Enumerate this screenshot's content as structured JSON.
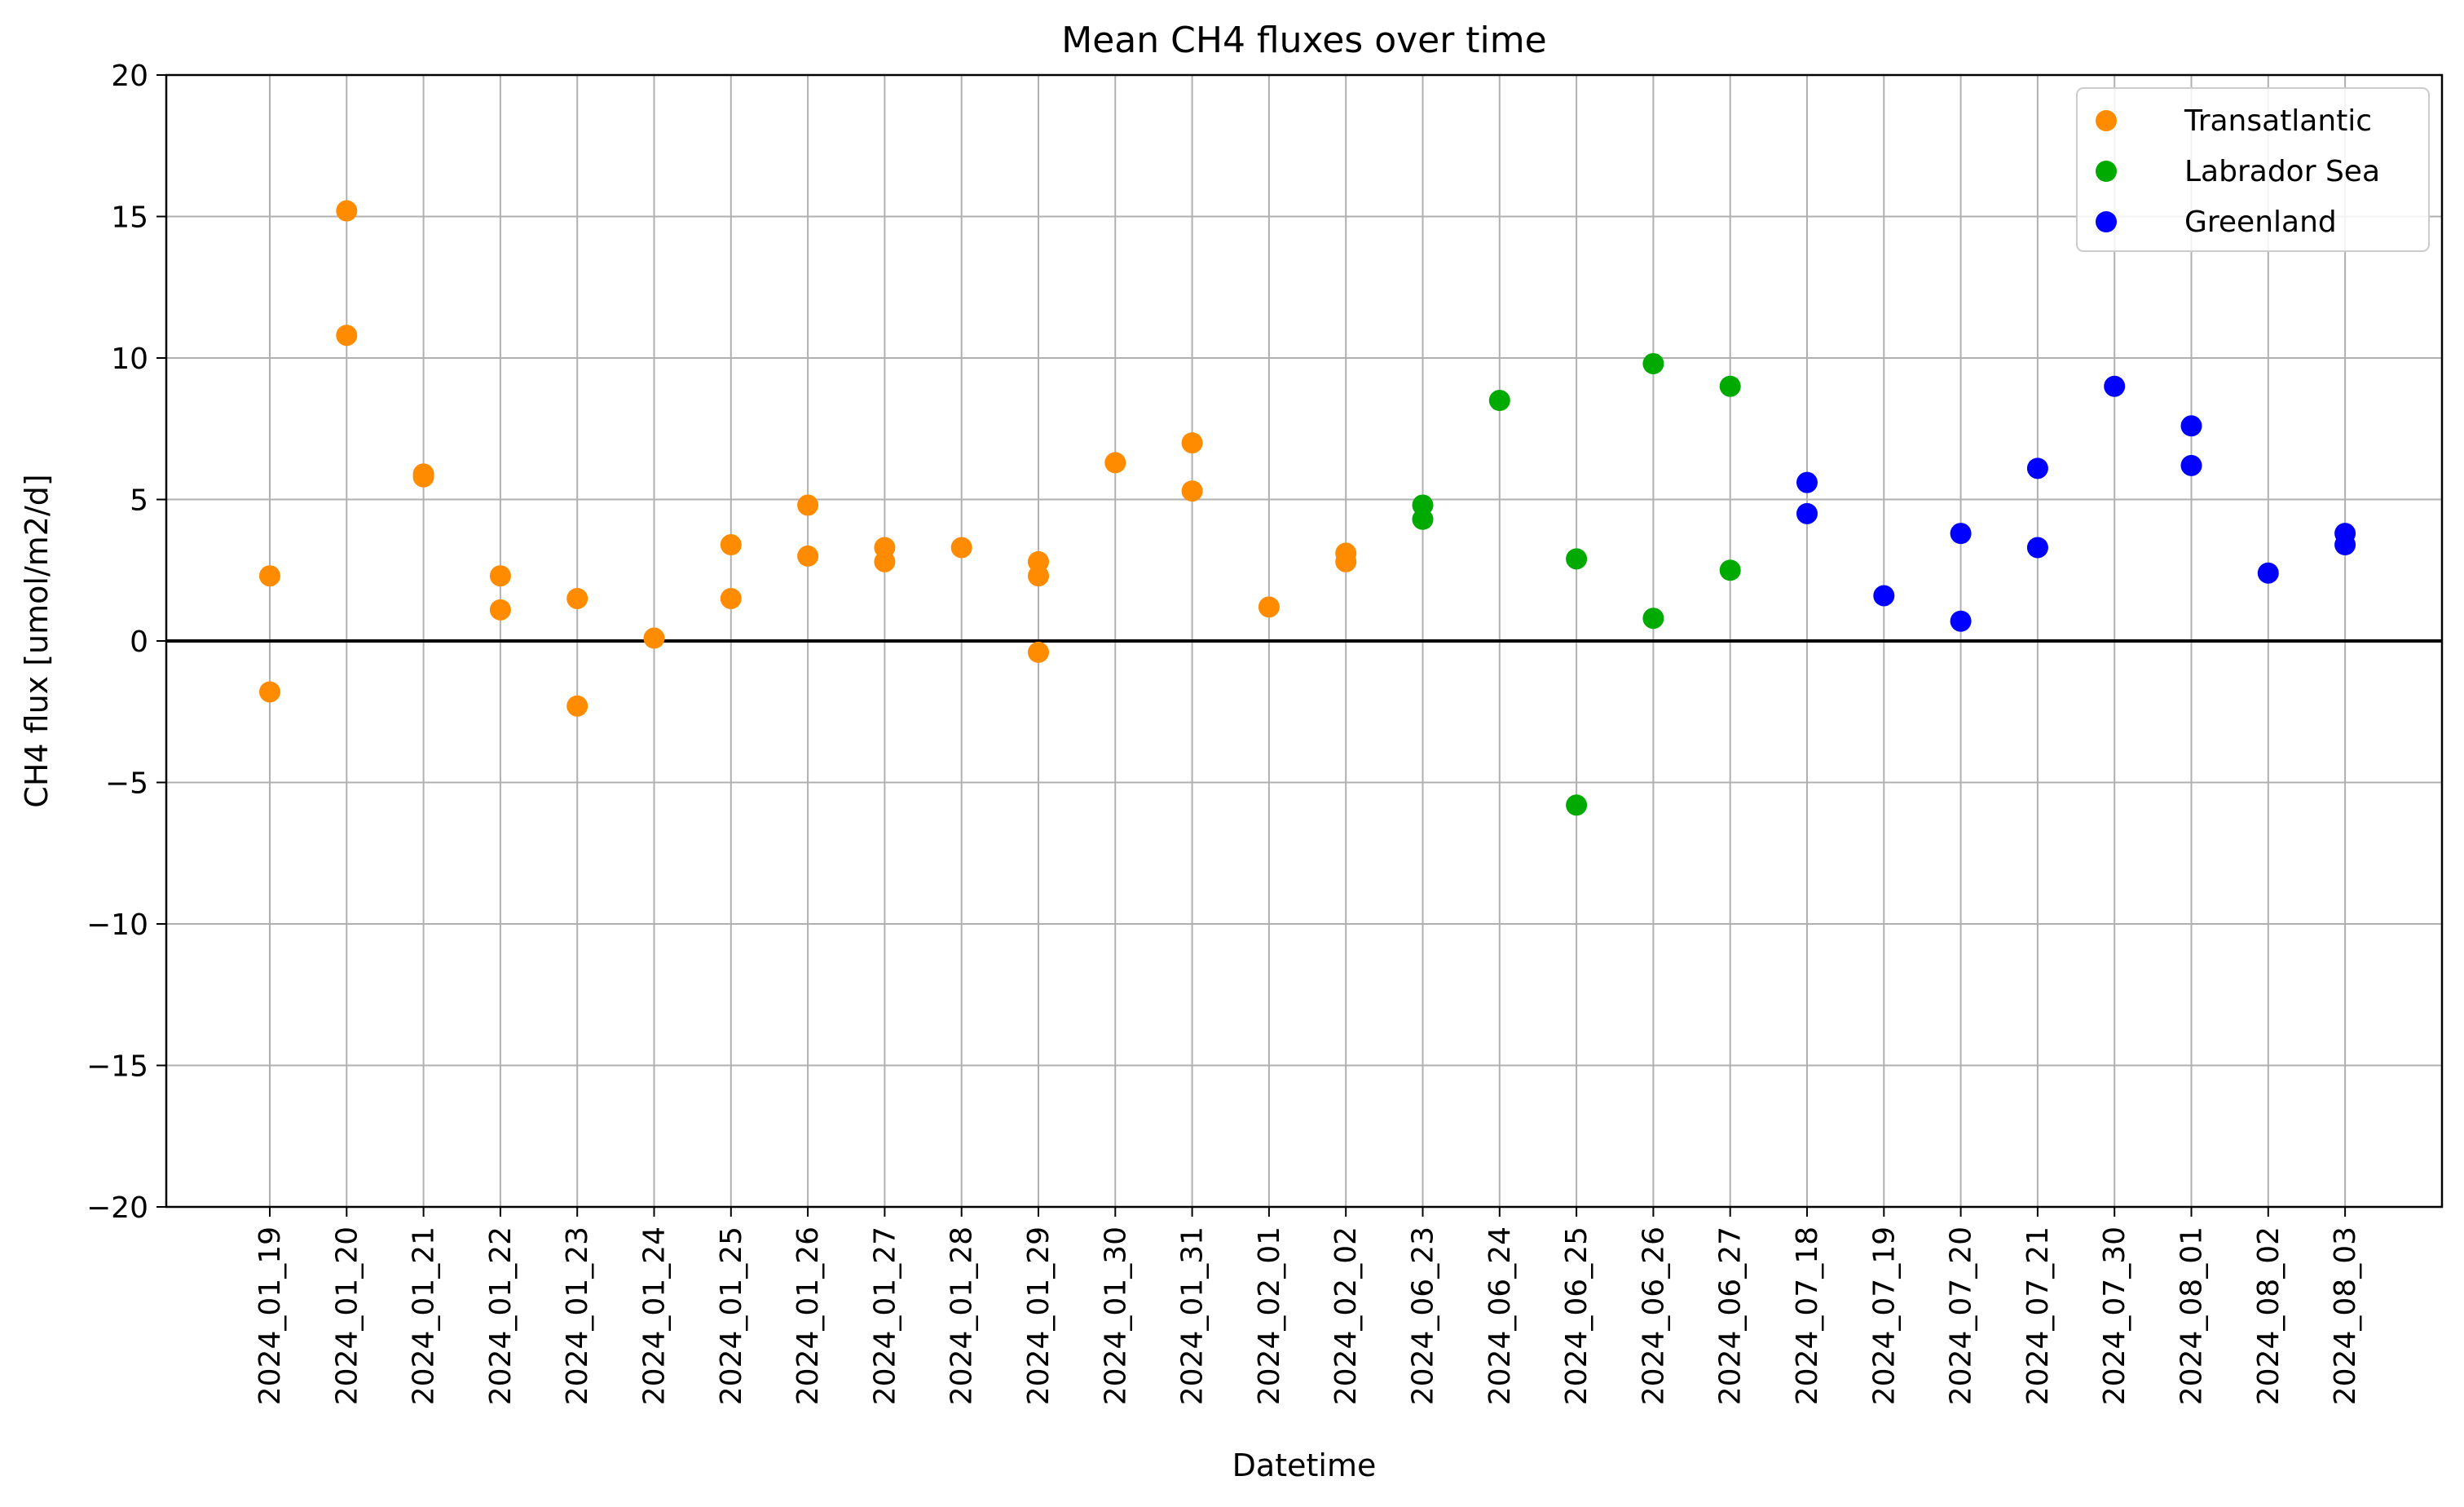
{
  "chart_data": {
    "type": "scatter",
    "title": "Mean CH4 fluxes over time",
    "xlabel": "Datetime",
    "ylabel": "CH4 flux [umol/m2/d]",
    "ylim": [
      -20,
      20
    ],
    "yticks": [
      "−20",
      "−15",
      "−10",
      "−5",
      "0",
      "5",
      "10",
      "15",
      "20"
    ],
    "categories": [
      "2024_01_19",
      "2024_01_20",
      "2024_01_21",
      "2024_01_22",
      "2024_01_23",
      "2024_01_24",
      "2024_01_25",
      "2024_01_26",
      "2024_01_27",
      "2024_01_28",
      "2024_01_29",
      "2024_01_30",
      "2024_01_31",
      "2024_02_01",
      "2024_02_02",
      "2024_06_23",
      "2024_06_24",
      "2024_06_25",
      "2024_06_26",
      "2024_06_27",
      "2024_07_18",
      "2024_07_19",
      "2024_07_20",
      "2024_07_21",
      "2024_07_30",
      "2024_08_01",
      "2024_08_02",
      "2024_08_03"
    ],
    "grid": true,
    "zero_line": true,
    "legend_position": "top-right",
    "series": [
      {
        "name": "Transatlantic",
        "color": "#ff8c00",
        "points": [
          [
            "2024_01_19",
            2.3
          ],
          [
            "2024_01_19",
            -1.8
          ],
          [
            "2024_01_20",
            15.2
          ],
          [
            "2024_01_20",
            10.8
          ],
          [
            "2024_01_21",
            5.9
          ],
          [
            "2024_01_21",
            5.8
          ],
          [
            "2024_01_22",
            2.3
          ],
          [
            "2024_01_22",
            1.1
          ],
          [
            "2024_01_23",
            1.5
          ],
          [
            "2024_01_23",
            -2.3
          ],
          [
            "2024_01_24",
            0.1
          ],
          [
            "2024_01_25",
            3.4
          ],
          [
            "2024_01_25",
            1.5
          ],
          [
            "2024_01_26",
            4.8
          ],
          [
            "2024_01_26",
            3.0
          ],
          [
            "2024_01_27",
            3.3
          ],
          [
            "2024_01_27",
            2.8
          ],
          [
            "2024_01_28",
            3.3
          ],
          [
            "2024_01_29",
            2.8
          ],
          [
            "2024_01_29",
            2.3
          ],
          [
            "2024_01_29",
            -0.4
          ],
          [
            "2024_01_30",
            6.3
          ],
          [
            "2024_01_31",
            7.0
          ],
          [
            "2024_01_31",
            5.3
          ],
          [
            "2024_02_01",
            1.2
          ],
          [
            "2024_02_02",
            3.1
          ],
          [
            "2024_02_02",
            2.8
          ]
        ]
      },
      {
        "name": "Labrador Sea",
        "color": "#00aa00",
        "points": [
          [
            "2024_06_23",
            4.8
          ],
          [
            "2024_06_23",
            4.3
          ],
          [
            "2024_06_24",
            8.5
          ],
          [
            "2024_06_25",
            2.9
          ],
          [
            "2024_06_25",
            -5.8
          ],
          [
            "2024_06_26",
            9.8
          ],
          [
            "2024_06_26",
            0.8
          ],
          [
            "2024_06_27",
            9.0
          ],
          [
            "2024_06_27",
            2.5
          ]
        ]
      },
      {
        "name": "Greenland",
        "color": "#0000ff",
        "points": [
          [
            "2024_07_18",
            5.6
          ],
          [
            "2024_07_18",
            4.5
          ],
          [
            "2024_07_19",
            1.6
          ],
          [
            "2024_07_20",
            3.8
          ],
          [
            "2024_07_20",
            0.7
          ],
          [
            "2024_07_21",
            6.1
          ],
          [
            "2024_07_21",
            3.3
          ],
          [
            "2024_07_30",
            9.0
          ],
          [
            "2024_08_01",
            7.6
          ],
          [
            "2024_08_01",
            6.2
          ],
          [
            "2024_08_02",
            2.4
          ],
          [
            "2024_08_03",
            3.8
          ],
          [
            "2024_08_03",
            3.4
          ]
        ]
      }
    ]
  }
}
